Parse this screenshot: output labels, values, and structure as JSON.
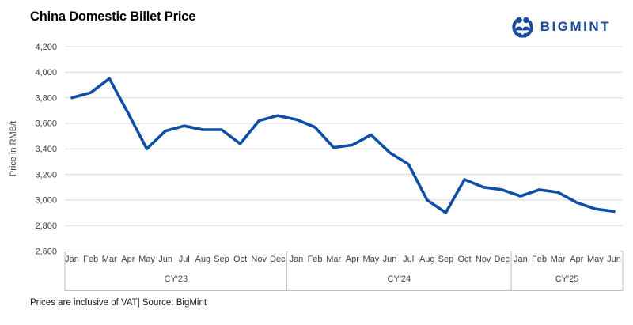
{
  "header": {
    "title": "China Domestic Billet Price",
    "logo_text": "BIGMINT"
  },
  "footer": {
    "note": "Prices are inclusive of VAT| Source: BigMint"
  },
  "colors": {
    "line": "#0E4FA5",
    "logo": "#1C4B9E",
    "grid": "#D9D9D9",
    "axis": "#BFBFBF",
    "label": "#404040"
  },
  "chart_data": {
    "type": "line",
    "title": "China Domestic Billet Price",
    "ylabel": "Price in RMB/t",
    "ylim": [
      2600,
      4200
    ],
    "ytick_step": 200,
    "grid": true,
    "legend": false,
    "groups": [
      {
        "label": "CY'23",
        "months": [
          "Jan",
          "Feb",
          "Mar",
          "Apr",
          "May",
          "Jun",
          "Jul",
          "Aug",
          "Sep",
          "Oct",
          "Nov",
          "Dec"
        ],
        "values": [
          3800,
          3840,
          3950,
          3680,
          3400,
          3540,
          3580,
          3550,
          3550,
          3440,
          3620,
          3660
        ]
      },
      {
        "label": "CY'24",
        "months": [
          "Jan",
          "Feb",
          "Mar",
          "Apr",
          "May",
          "Jun",
          "Jul",
          "Aug",
          "Sep",
          "Oct",
          "Nov",
          "Dec"
        ],
        "values": [
          3630,
          3570,
          3410,
          3430,
          3510,
          3370,
          3280,
          3000,
          2900,
          3160,
          3100,
          3080
        ]
      },
      {
        "label": "CY'25",
        "months": [
          "Jan",
          "Feb",
          "Mar",
          "Apr",
          "May",
          "Jun"
        ],
        "values": [
          3030,
          3080,
          3060,
          2980,
          2930,
          2910
        ]
      }
    ]
  }
}
